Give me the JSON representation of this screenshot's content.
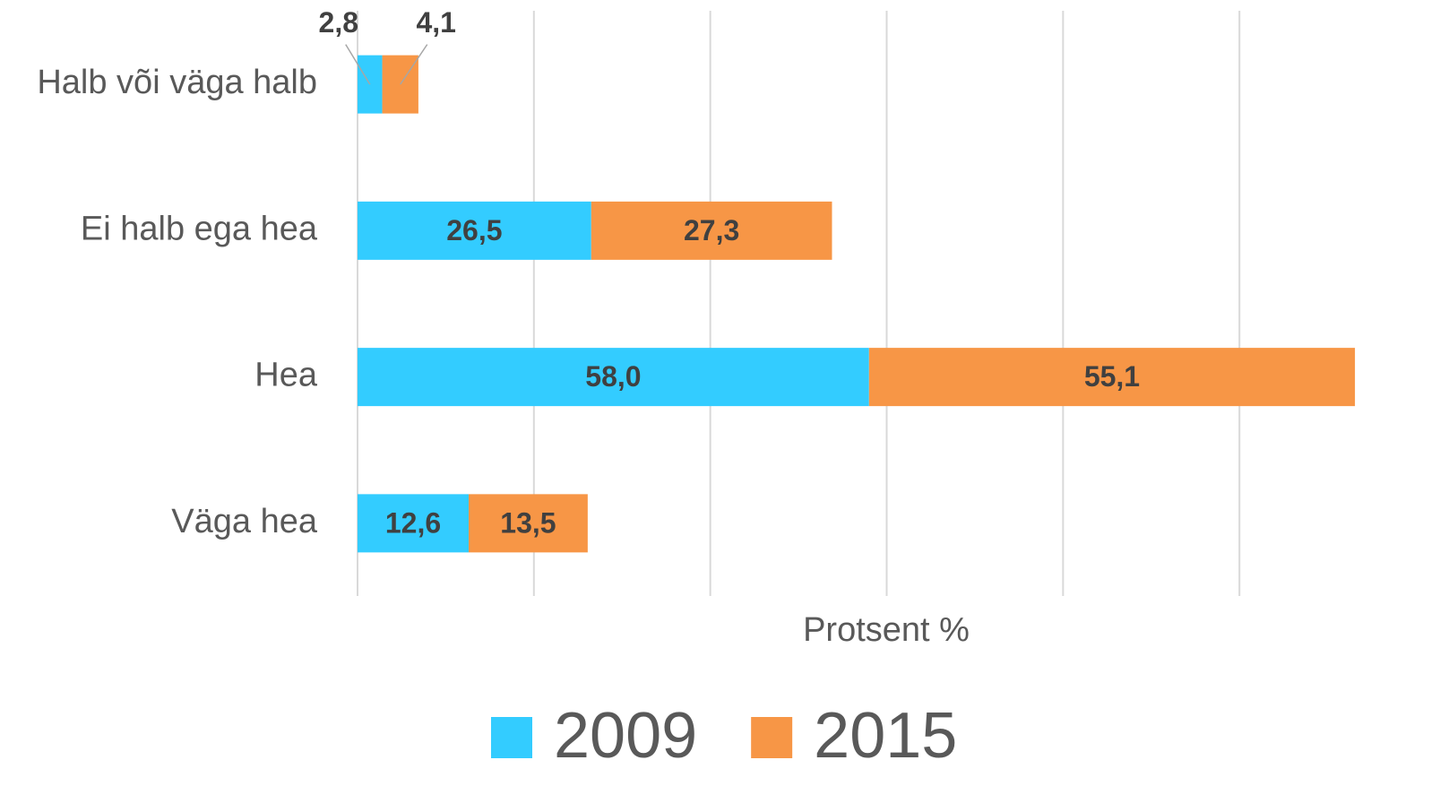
{
  "chart_data": {
    "type": "stacked-barh",
    "x_label": "Protsent %",
    "categories": [
      "Halb või väga halb",
      "Ei halb ega hea",
      "Hea",
      "Väga hea"
    ],
    "series": [
      {
        "name": "2009",
        "color": "#33ccff",
        "values": [
          2.8,
          26.5,
          58.0,
          12.6
        ],
        "value_labels": [
          "2,8",
          "26,5",
          "58,0",
          "12,6"
        ]
      },
      {
        "name": "2015",
        "color": "#f79646",
        "values": [
          4.1,
          27.3,
          55.1,
          13.5
        ],
        "value_labels": [
          "4,1",
          "27,3",
          "55,1",
          "13,5"
        ]
      }
    ],
    "xlim": [
      0,
      120
    ],
    "xticks": [
      0,
      20,
      40,
      60,
      80,
      100
    ],
    "grid": true,
    "legend": "bottom"
  }
}
